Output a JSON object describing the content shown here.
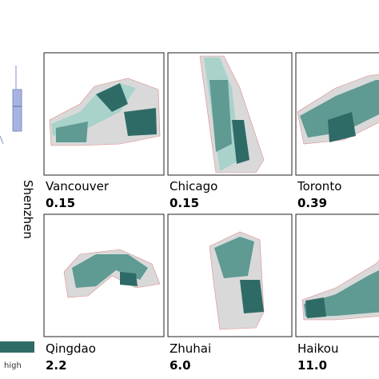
{
  "side_label": "Shenzhen",
  "legend": {
    "high": "high"
  },
  "panels": [
    {
      "city": "Vancouver",
      "value": "0.15"
    },
    {
      "city": "Chicago",
      "value": "0.15"
    },
    {
      "city": "Toronto",
      "value": "0.39"
    },
    {
      "city": "Qingdao",
      "value": "2.2"
    },
    {
      "city": "Zhuhai",
      "value": "6.0"
    },
    {
      "city": "Haikou",
      "value": "11.0"
    }
  ]
}
